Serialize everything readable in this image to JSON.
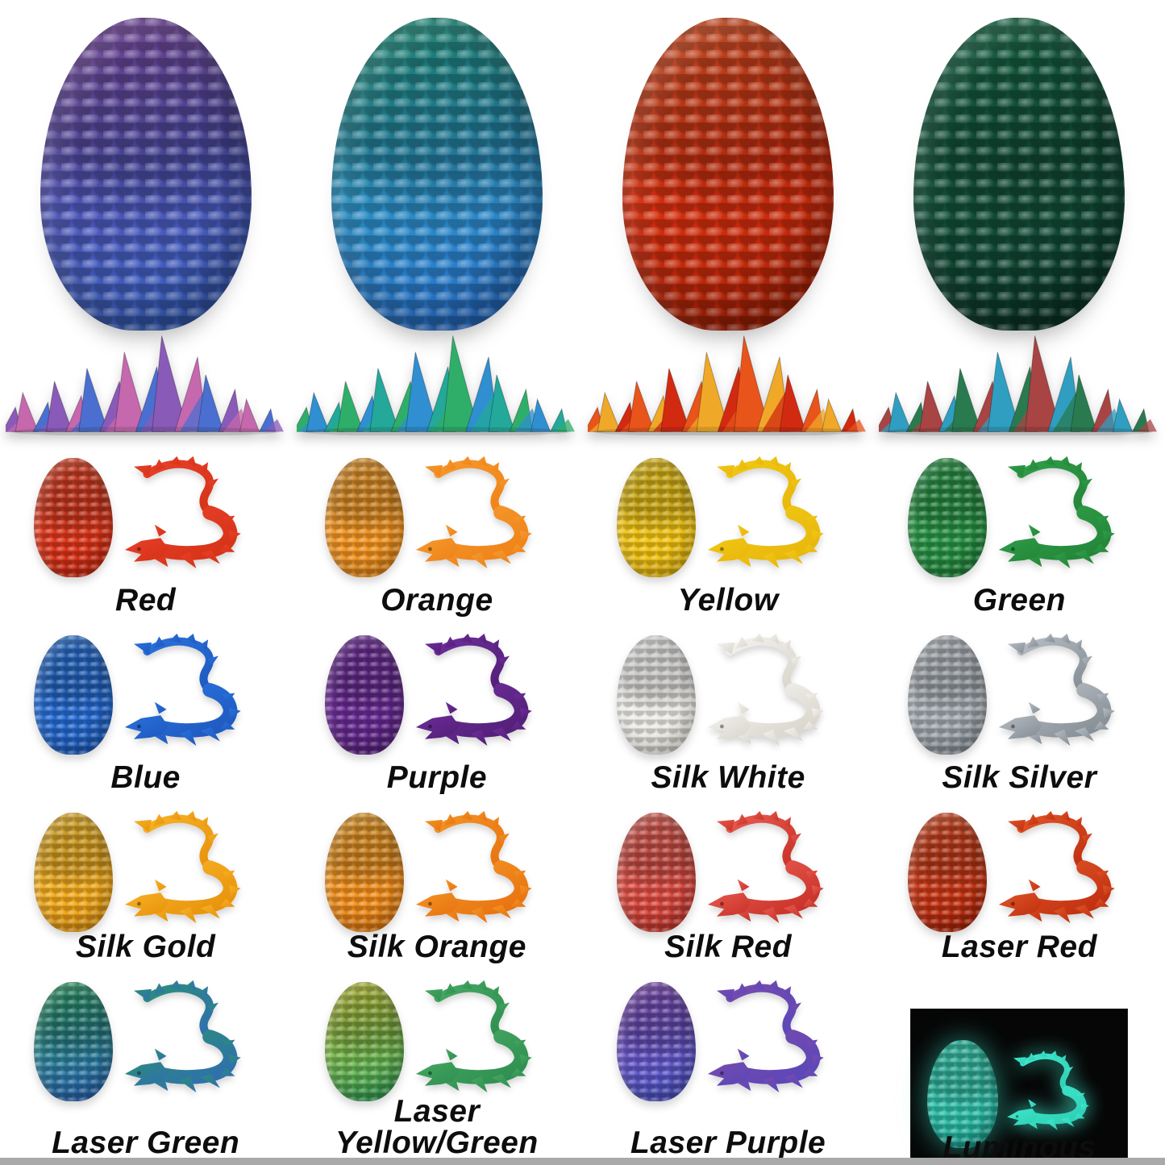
{
  "page": {
    "background": "#ffffff",
    "description": "3D printed articulated crystal dragons inside dragon eggs - color chart"
  },
  "hero": {
    "items": [
      {
        "name": "Laser Purple Blue Egg with Crystal Dragon",
        "egg": [
          "#8a4fb0",
          "#4f55b6",
          "#3563c0"
        ],
        "dragon": [
          "#8a5ab8",
          "#c568ae",
          "#4a6fd0"
        ]
      },
      {
        "name": "Laser Green Teal Egg with Crystal Dragon",
        "egg": [
          "#23a184",
          "#2b8fc2",
          "#2a6fd2"
        ],
        "dragon": [
          "#2fae6a",
          "#2f8fd0",
          "#23a89a"
        ]
      },
      {
        "name": "Red Egg with Flame Crystal Dragon",
        "egg": [
          "#ef5a28",
          "#d8300f",
          "#a52106"
        ],
        "dragon": [
          "#e8541a",
          "#f0a828",
          "#d22a10"
        ]
      },
      {
        "name": "Dark Green Egg with Crystal Dragon",
        "egg": [
          "#1d7a55",
          "#13503a",
          "#0c3527"
        ],
        "dragon": [
          "#a84444",
          "#2f9ec0",
          "#2a7a50"
        ]
      }
    ]
  },
  "variants": {
    "items": [
      {
        "label": "Red",
        "egg": [
          "#ef4b2d",
          "#d32a10"
        ],
        "dragon": [
          "#e8402a",
          "#d63318"
        ]
      },
      {
        "label": "Orange",
        "egg": [
          "#f7a433",
          "#ef8c18"
        ],
        "dragon": [
          "#f59a2e",
          "#ef8318"
        ]
      },
      {
        "label": "Yellow",
        "egg": [
          "#f7d01f",
          "#efbd0d"
        ],
        "dragon": [
          "#f2c814",
          "#e8b70c"
        ]
      },
      {
        "label": "Green",
        "egg": [
          "#33a452",
          "#22883c"
        ],
        "dragon": [
          "#2f9e4a",
          "#238638"
        ]
      },
      {
        "label": "Blue",
        "egg": [
          "#2f7ce4",
          "#1f5fc4"
        ],
        "dragon": [
          "#2a72dc",
          "#1e59c0"
        ]
      },
      {
        "label": "Purple",
        "egg": [
          "#7a35a8",
          "#5c2384"
        ],
        "dragon": [
          "#6e2d9a",
          "#531f78"
        ]
      },
      {
        "label": "Silk White",
        "egg": [
          "#ffffff",
          "#e6e3dc"
        ],
        "dragon": [
          "#f4f2ee",
          "#d9d6cd"
        ]
      },
      {
        "label": "Silk Silver",
        "egg": [
          "#c9ced3",
          "#8f979e"
        ],
        "dragon": [
          "#b7bdc3",
          "#868e96"
        ]
      },
      {
        "label": "Silk Gold",
        "egg": [
          "#fcc432",
          "#ed9c10"
        ],
        "dragon": [
          "#f7b224",
          "#e8930d"
        ]
      },
      {
        "label": "Silk Orange",
        "egg": [
          "#fbab2e",
          "#ec7f12"
        ],
        "dragon": [
          "#f49324",
          "#e87310"
        ]
      },
      {
        "label": "Silk Red",
        "egg": [
          "#ef6a60",
          "#cf3a30"
        ],
        "dragon": [
          "#e85a50",
          "#c93228"
        ]
      },
      {
        "label": "Laser Red",
        "egg": [
          "#e8542a",
          "#b22408"
        ],
        "dragon": [
          "#e05426",
          "#c03010"
        ]
      },
      {
        "label": "Laser Green",
        "egg": [
          "#2fa76a",
          "#2b64b8"
        ],
        "dragon": [
          "#2b8f78",
          "#2f6fae"
        ]
      },
      {
        "label": "Laser Yellow/Green",
        "egg": [
          "#cfd23a",
          "#2f9e58"
        ],
        "dragon": [
          "#46a862",
          "#2f8f50"
        ]
      },
      {
        "label": "Laser Purple",
        "egg": [
          "#8a52c0",
          "#4a56c8"
        ],
        "dragon": [
          "#7a4aae",
          "#5a48b8"
        ]
      },
      {
        "label": "Luminous",
        "egg": [
          "#49e0c2",
          "#1fa898"
        ],
        "dragon": [
          "#3fe8cd",
          "#2fd0b5"
        ],
        "tile": "#060606",
        "glow": "#3fe8cd"
      }
    ]
  },
  "footer": {
    "strip_color": "#a9a9a9"
  }
}
